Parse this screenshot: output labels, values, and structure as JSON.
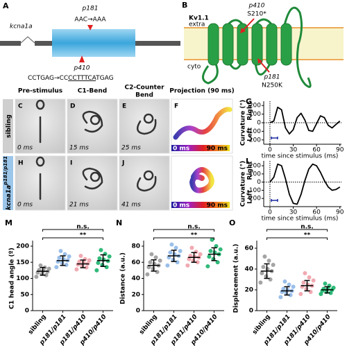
{
  "panel_A": {
    "label": "A",
    "gene": "kcna1a",
    "mut1_name": "p181",
    "mut1_codon": "AAC→AAA",
    "mut2_name": "p410",
    "mut2_seq_prefix": "CCTGAG→CC",
    "mut2_seq_underlined": "CCTTTCA",
    "mut2_seq_suffix": "TGAG"
  },
  "panel_B": {
    "label": "B",
    "protein": "Kv1.1",
    "extra": "extra",
    "cyto": "cyto",
    "mut1_name": "p410",
    "mut1_change": "S210*",
    "mut2_name": "p181",
    "mut2_change": "N250K"
  },
  "image_grid": {
    "column_headers": [
      {
        "lines": [
          "Pre-stimulus"
        ]
      },
      {
        "lines": [
          "C1-Bend"
        ]
      },
      {
        "lines": [
          "C2-Counter",
          "Bend"
        ]
      },
      {
        "lines": [
          "Projection (90 ms)"
        ]
      }
    ],
    "rows": [
      {
        "label": "sibling",
        "panels": [
          {
            "letter": "C",
            "time": "0 ms"
          },
          {
            "letter": "D",
            "time": "15 ms"
          },
          {
            "letter": "E",
            "time": "25 ms"
          },
          {
            "letter": "F"
          }
        ]
      },
      {
        "label": "kcna1a",
        "label_sup": "p181/p181",
        "panels": [
          {
            "letter": "H",
            "time": "0 ms"
          },
          {
            "letter": "I",
            "time": "21 ms"
          },
          {
            "letter": "J",
            "time": "41 ms"
          },
          {}
        ]
      }
    ],
    "colorbar_start": "0 ms",
    "colorbar_end": "90 ms"
  },
  "chart_data": [
    {
      "type": "line",
      "panel": "G",
      "ylabel": "Curvature (°)",
      "upper": "Right",
      "lower": "Left",
      "xlabel": "time since stimulus (ms)",
      "x": [
        0,
        5,
        10,
        15,
        20,
        25,
        30,
        35,
        40,
        45,
        50,
        55,
        60,
        65,
        70,
        75,
        80,
        85,
        90
      ],
      "xlim": [
        -8,
        92
      ],
      "xticks": [
        0,
        30,
        60,
        90
      ],
      "ylim": [
        -250,
        250
      ],
      "yticks": [
        -200,
        -100,
        0,
        100,
        200
      ],
      "series": [
        {
          "color": "#000000",
          "values": [
            0,
            20,
            180,
            150,
            -60,
            -130,
            -80,
            60,
            110,
            30,
            -90,
            -100,
            -10,
            80,
            60,
            -30,
            -60,
            -20,
            20
          ]
        }
      ]
    },
    {
      "type": "line",
      "panel": "L",
      "ylabel": "Curvature (°)",
      "upper": "Right",
      "lower": "Left",
      "xlabel": "time since stimulus (ms)",
      "x": [
        0,
        5,
        10,
        15,
        20,
        25,
        30,
        35,
        40,
        45,
        50,
        55,
        60,
        65,
        70,
        75,
        80,
        85,
        90
      ],
      "xlim": [
        -8,
        92
      ],
      "xticks": [
        0,
        30,
        60,
        90
      ],
      "ylim": [
        -300,
        260
      ],
      "yticks": [
        -200,
        -100,
        0,
        100,
        200
      ],
      "series": [
        {
          "color": "#000000",
          "values": [
            0,
            60,
            220,
            200,
            40,
            -150,
            -260,
            -270,
            -150,
            20,
            160,
            220,
            200,
            120,
            20,
            -60,
            -100,
            -90,
            -60
          ]
        }
      ]
    },
    {
      "type": "dot",
      "panel": "M",
      "ylabel": "C1 head angle (º)",
      "ylim": [
        0,
        200
      ],
      "yticks": [
        0,
        50,
        100,
        150,
        200
      ],
      "significance": [
        "**",
        "n.s."
      ],
      "categories": [
        "sibling",
        "p181/p181",
        "p181/p410",
        "p410/p410"
      ],
      "groups": [
        {
          "color": "#9a9a9a",
          "mean": 122,
          "sd": 12,
          "points": [
            105,
            110,
            114,
            118,
            121,
            123,
            126,
            130,
            134,
            140
          ]
        },
        {
          "color": "#8fb8e8",
          "mean": 155,
          "sd": 15,
          "points": [
            135,
            142,
            148,
            152,
            156,
            160,
            164,
            168,
            175,
            185
          ]
        },
        {
          "color": "#f0a0a8",
          "mean": 145,
          "sd": 12,
          "points": [
            128,
            134,
            139,
            143,
            146,
            149,
            152,
            156,
            160,
            170
          ]
        },
        {
          "color": "#19b36b",
          "mean": 155,
          "sd": 18,
          "points": [
            125,
            135,
            142,
            148,
            154,
            158,
            162,
            168,
            176,
            188
          ]
        }
      ]
    },
    {
      "type": "dot",
      "panel": "N",
      "ylabel": "Distance (a.u.)",
      "ylim": [
        0,
        80
      ],
      "yticks": [
        0,
        20,
        40,
        60,
        80
      ],
      "significance": [
        "**",
        "n.s."
      ],
      "categories": [
        "sibling",
        "p181/p181",
        "p181/p410",
        "p410/p410"
      ],
      "groups": [
        {
          "color": "#9a9a9a",
          "mean": 56,
          "sd": 7,
          "points": [
            45,
            48,
            52,
            54,
            56,
            58,
            60,
            62,
            66,
            70
          ]
        },
        {
          "color": "#8fb8e8",
          "mean": 68,
          "sd": 7,
          "points": [
            56,
            60,
            63,
            66,
            68,
            70,
            72,
            74,
            78,
            82
          ]
        },
        {
          "color": "#f0a0a8",
          "mean": 66,
          "sd": 6,
          "points": [
            56,
            60,
            62,
            64,
            66,
            67,
            68,
            70,
            73,
            78
          ]
        },
        {
          "color": "#19b36b",
          "mean": 70,
          "sd": 8,
          "points": [
            55,
            60,
            64,
            67,
            70,
            72,
            74,
            76,
            80,
            88
          ]
        }
      ]
    },
    {
      "type": "dot",
      "panel": "O",
      "ylabel": "Displacement (a.u.)",
      "ylim": [
        0,
        62
      ],
      "yticks": [
        0,
        20,
        40,
        60
      ],
      "significance": [
        "**",
        "n.s."
      ],
      "categories": [
        "sibling",
        "p181/p181",
        "p181/p410",
        "p410/p410"
      ],
      "groups": [
        {
          "color": "#9a9a9a",
          "mean": 38,
          "sd": 7,
          "points": [
            27,
            30,
            33,
            36,
            38,
            40,
            42,
            44,
            48,
            52
          ]
        },
        {
          "color": "#8fb8e8",
          "mean": 19,
          "sd": 4,
          "points": [
            13,
            15,
            17,
            18,
            19,
            20,
            21,
            23,
            25,
            28
          ]
        },
        {
          "color": "#f0a0a8",
          "mean": 24,
          "sd": 5,
          "points": [
            16,
            18,
            21,
            23,
            24,
            25,
            27,
            29,
            32,
            36
          ]
        },
        {
          "color": "#19b36b",
          "mean": 20,
          "sd": 3,
          "points": [
            16,
            17,
            18,
            19,
            20,
            21,
            21,
            22,
            24,
            26
          ]
        }
      ]
    }
  ]
}
